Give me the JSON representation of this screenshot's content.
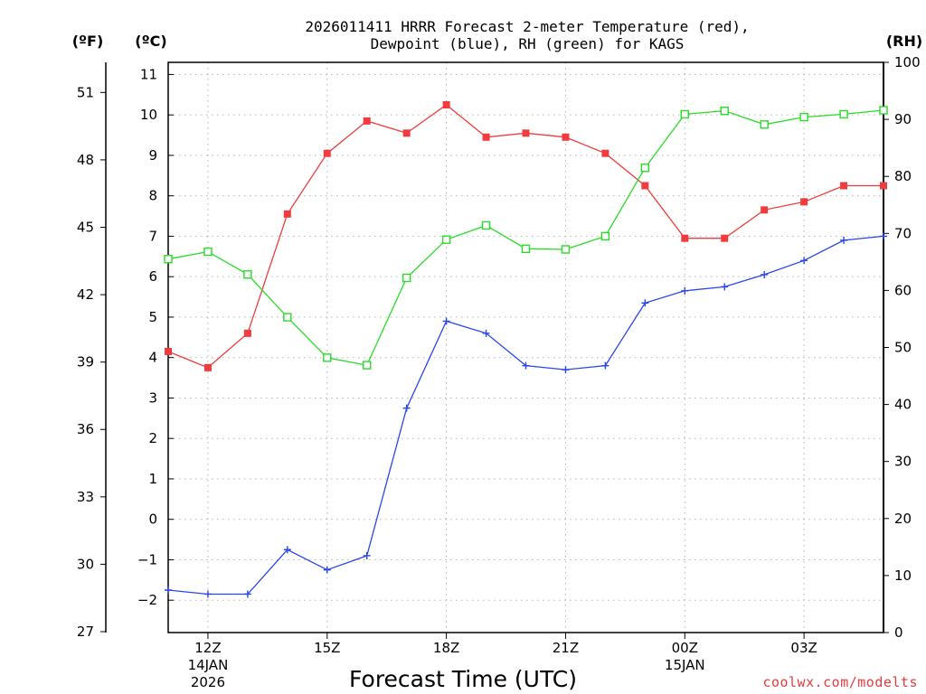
{
  "chart_data": {
    "type": "line",
    "title_line1": "2026011411 HRRR Forecast 2-meter Temperature (red),",
    "title_line2": "Dewpoint (blue), RH (green) for KAGS",
    "xlabel": "Forecast Time (UTC)",
    "credit": "coolwx.com/modelts",
    "unit_f": "(ºF)",
    "unit_c": "(ºC)",
    "unit_rh": "(RH)",
    "x_hours": [
      11,
      12,
      13,
      14,
      15,
      16,
      17,
      18,
      19,
      20,
      21,
      22,
      23,
      24,
      25,
      26,
      27,
      28,
      29
    ],
    "xlim": [
      11,
      29
    ],
    "x_ticks": [
      {
        "hour": 12,
        "label": "12Z",
        "sub1": "14JAN",
        "sub2": "2026"
      },
      {
        "hour": 15,
        "label": "15Z",
        "sub1": "",
        "sub2": ""
      },
      {
        "hour": 18,
        "label": "18Z",
        "sub1": "",
        "sub2": ""
      },
      {
        "hour": 21,
        "label": "21Z",
        "sub1": "",
        "sub2": ""
      },
      {
        "hour": 24,
        "label": "00Z",
        "sub1": "15JAN",
        "sub2": ""
      },
      {
        "hour": 27,
        "label": "03Z",
        "sub1": "",
        "sub2": ""
      }
    ],
    "celsius_axis": {
      "range": [
        -2.8,
        11.3
      ],
      "ticks": [
        "-2",
        "-1",
        "0",
        "1",
        "2",
        "3",
        "4",
        "5",
        "6",
        "7",
        "8",
        "9",
        "10",
        "11"
      ]
    },
    "fahrenheit_axis": {
      "ticks": [
        "27",
        "30",
        "33",
        "36",
        "39",
        "42",
        "45",
        "48",
        "51"
      ]
    },
    "rh_axis": {
      "range": [
        0,
        100
      ],
      "ticks": [
        "0",
        "10",
        "20",
        "30",
        "40",
        "50",
        "60",
        "70",
        "80",
        "90",
        "100"
      ]
    },
    "series": [
      {
        "name": "Temperature",
        "unit": "C",
        "color": "#f03c3c",
        "marker": "filled-square",
        "values": [
          4.15,
          3.75,
          4.6,
          7.55,
          9.05,
          9.85,
          9.55,
          10.25,
          9.45,
          9.55,
          9.45,
          9.05,
          8.25,
          6.95,
          6.95,
          7.65,
          7.85,
          8.25,
          8.25
        ]
      },
      {
        "name": "Dewpoint",
        "unit": "C",
        "color": "#2846f0",
        "marker": "plus",
        "values": [
          -1.75,
          -1.85,
          -1.85,
          -0.75,
          -1.25,
          -0.9,
          2.75,
          4.9,
          4.6,
          3.8,
          3.7,
          3.8,
          5.35,
          5.65,
          5.75,
          6.05,
          6.4,
          6.9,
          7.0
        ]
      },
      {
        "name": "RH",
        "unit": "%",
        "color": "#28dc28",
        "marker": "open-square",
        "values": [
          65.5,
          66.8,
          62.8,
          55.3,
          48.2,
          46.9,
          62.2,
          68.9,
          71.4,
          67.3,
          67.2,
          69.5,
          81.5,
          90.9,
          91.5,
          89.1,
          90.4,
          90.9,
          91.6
        ]
      }
    ]
  }
}
